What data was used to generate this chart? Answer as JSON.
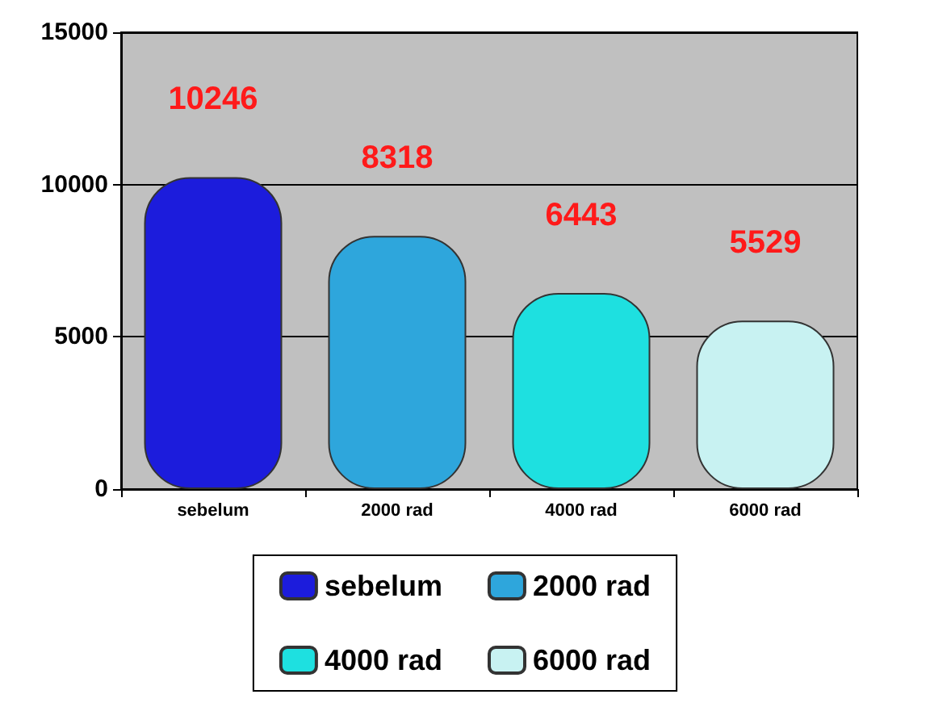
{
  "chart_data": {
    "type": "bar",
    "categories": [
      "sebelum",
      "2000 rad",
      "4000 rad",
      "6000 rad"
    ],
    "series": [
      {
        "name": "sebelum",
        "color": "#1c1cdc",
        "values": [
          10246,
          null,
          null,
          null
        ]
      },
      {
        "name": "2000 rad",
        "color": "#2ea6dc",
        "values": [
          null,
          8318,
          null,
          null
        ]
      },
      {
        "name": "4000 rad",
        "color": "#1ee0e0",
        "values": [
          null,
          null,
          6443,
          null
        ]
      },
      {
        "name": "6000 rad",
        "color": "#c8f2f2",
        "values": [
          null,
          null,
          null,
          5529
        ]
      }
    ],
    "ylim": [
      0,
      15000
    ],
    "yticks": [
      0,
      5000,
      10000,
      15000
    ],
    "grid": true,
    "legend": "bottom",
    "data_labels": true
  }
}
